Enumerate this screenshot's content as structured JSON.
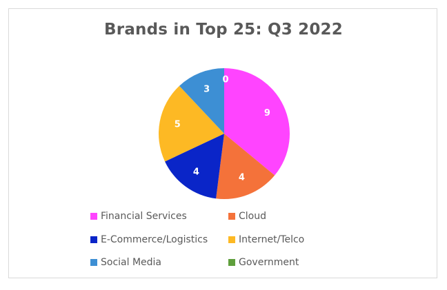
{
  "chart_data": {
    "type": "pie",
    "title": "Brands in Top 25: Q3 2022",
    "categories": [
      "Financial Services",
      "Cloud",
      "E-Commerce/Logistics",
      "Internet/Telco",
      "Social Media",
      "Government"
    ],
    "values": [
      9,
      4,
      4,
      5,
      3,
      0
    ],
    "colors": [
      "#ff44ff",
      "#f4723a",
      "#0a25c8",
      "#fdb924",
      "#3d8fd4",
      "#5f9f3c"
    ],
    "data_labels": [
      "9",
      "4",
      "4",
      "5",
      "3",
      "0"
    ],
    "legend_position": "bottom"
  }
}
